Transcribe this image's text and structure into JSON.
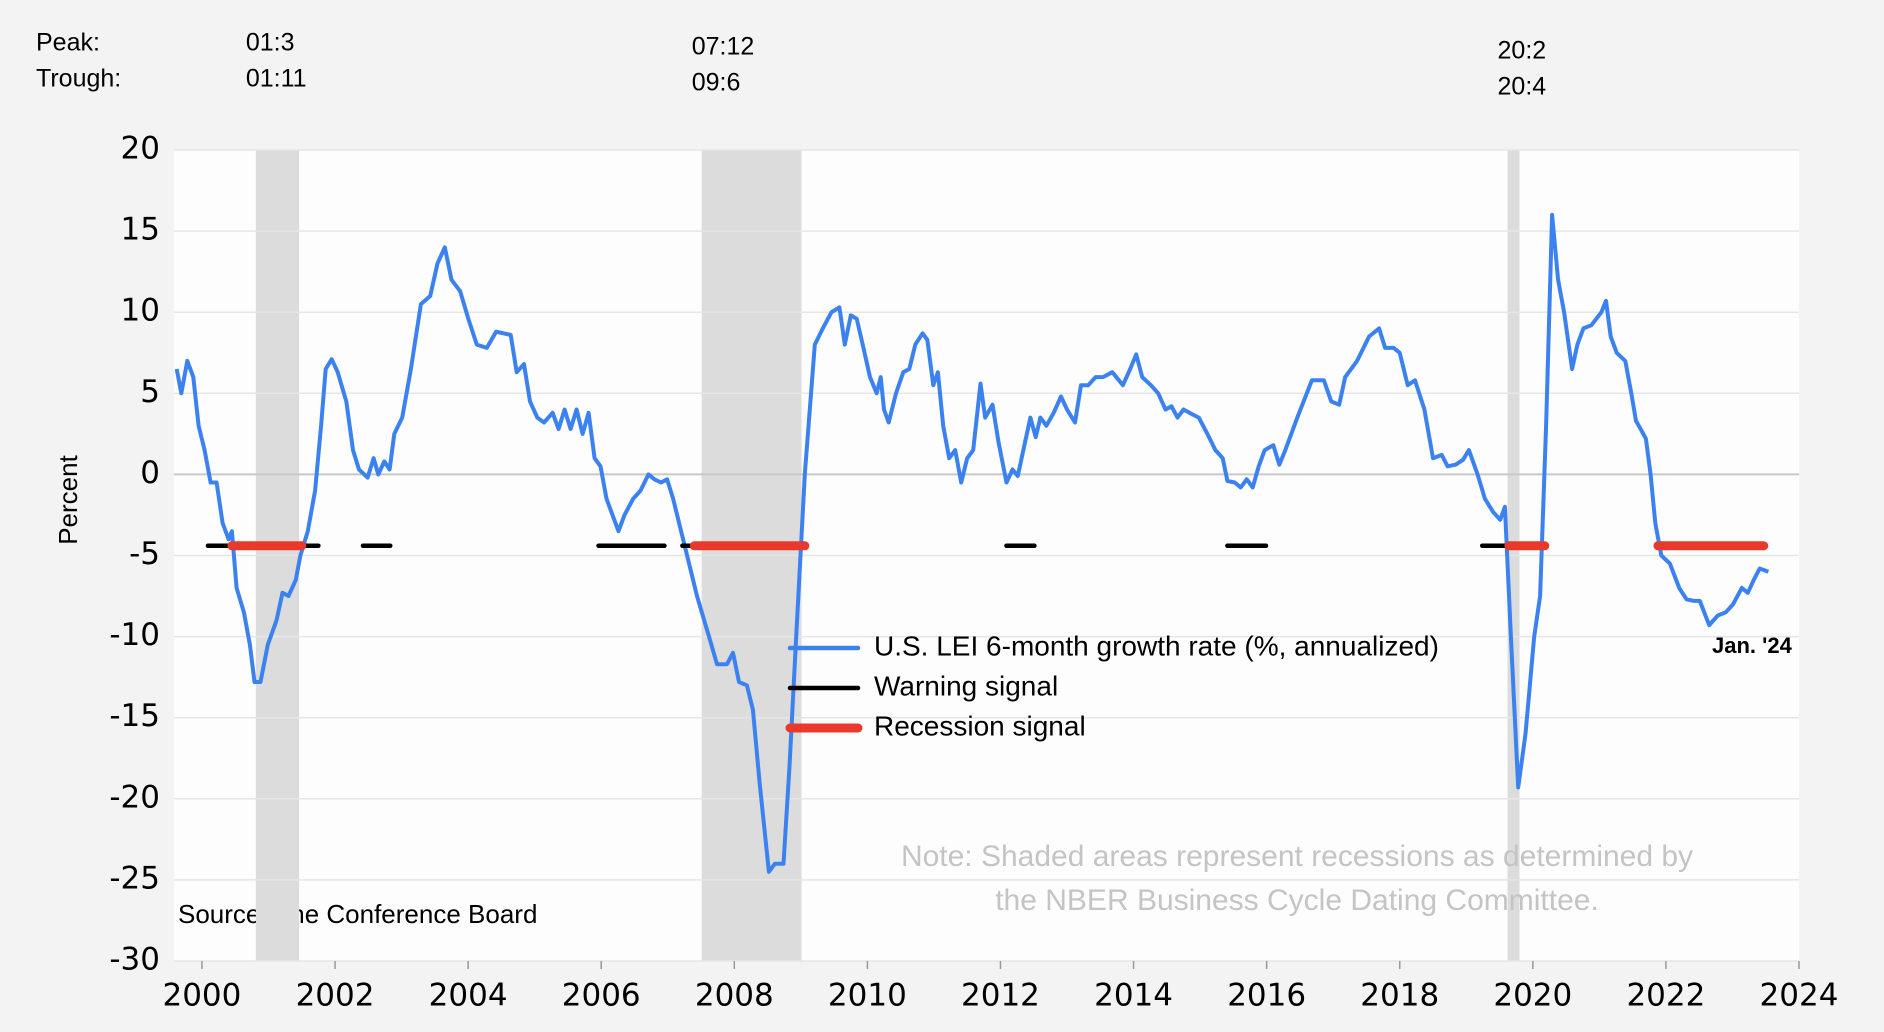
{
  "chart_data": {
    "type": "line",
    "y_label": "Percent",
    "peak_label": "Peak:",
    "trough_label": "Trough:",
    "recessions": [
      {
        "peak": "01:3",
        "trough": "01:11",
        "start": 2000.81,
        "end": 2001.46
      },
      {
        "peak": "07:12",
        "trough": "09:6",
        "start": 2007.51,
        "end": 2009.01
      },
      {
        "peak": "20:2",
        "trough": "20:4",
        "start": 2019.62,
        "end": 2019.8
      }
    ],
    "series": [
      {
        "name": "U.S. LEI 6-month growth rate (%, annualized)",
        "color": "#3b82f0",
        "x": [
          1999.62,
          1999.69,
          1999.78,
          1999.87,
          1999.95,
          2000.04,
          2000.13,
          2000.22,
          2000.31,
          2000.4,
          2000.45,
          2000.52,
          2000.63,
          2000.72,
          2000.79,
          2000.88,
          2000.99,
          2001.12,
          2001.21,
          2001.3,
          2001.41,
          2001.48,
          2001.59,
          2001.7,
          2001.79,
          2001.86,
          2001.95,
          2002.04,
          2002.17,
          2002.27,
          2002.36,
          2002.49,
          2002.58,
          2002.65,
          2002.74,
          2002.82,
          2002.89,
          2003.01,
          2003.14,
          2003.29,
          2003.43,
          2003.54,
          2003.65,
          2003.75,
          2003.88,
          2004.01,
          2004.13,
          2004.28,
          2004.42,
          2004.64,
          2004.73,
          2004.84,
          2004.93,
          2005.04,
          2005.14,
          2005.27,
          2005.36,
          2005.45,
          2005.54,
          2005.63,
          2005.72,
          2005.81,
          2005.9,
          2005.99,
          2006.08,
          2006.17,
          2006.26,
          2006.35,
          2006.48,
          2006.59,
          2006.71,
          2006.8,
          2006.9,
          2006.99,
          2007.08,
          2007.17,
          2007.26,
          2007.44,
          2007.62,
          2007.74,
          2007.89,
          2007.98,
          2008.07,
          2008.19,
          2008.28,
          2008.38,
          2008.52,
          2008.61,
          2008.74,
          2008.83,
          2008.93,
          2009.06,
          2009.21,
          2009.33,
          2009.46,
          2009.58,
          2009.66,
          2009.75,
          2009.84,
          2009.93,
          2010.04,
          2010.14,
          2010.2,
          2010.25,
          2010.32,
          2010.43,
          2010.54,
          2010.63,
          2010.72,
          2010.83,
          2010.9,
          2010.99,
          2011.06,
          2011.14,
          2011.23,
          2011.32,
          2011.41,
          2011.5,
          2011.59,
          2011.7,
          2011.77,
          2011.88,
          2011.97,
          2012.09,
          2012.18,
          2012.26,
          2012.36,
          2012.45,
          2012.53,
          2012.6,
          2012.69,
          2012.8,
          2012.91,
          2013.0,
          2013.12,
          2013.21,
          2013.32,
          2013.43,
          2013.54,
          2013.68,
          2013.84,
          2013.95,
          2014.04,
          2014.13,
          2014.26,
          2014.37,
          2014.48,
          2014.57,
          2014.66,
          2014.75,
          2014.84,
          2014.98,
          2015.11,
          2015.23,
          2015.34,
          2015.41,
          2015.52,
          2015.61,
          2015.7,
          2015.79,
          2015.88,
          2015.97,
          2016.1,
          2016.19,
          2016.28,
          2016.46,
          2016.68,
          2016.86,
          2016.97,
          2017.09,
          2017.18,
          2017.36,
          2017.54,
          2017.69,
          2017.78,
          2017.91,
          2018.0,
          2018.12,
          2018.23,
          2018.37,
          2018.5,
          2018.63,
          2018.72,
          2018.84,
          2018.95,
          2019.04,
          2019.17,
          2019.28,
          2019.4,
          2019.51,
          2019.58,
          2019.67,
          2019.78,
          2019.89,
          2020.02,
          2020.11,
          2020.2,
          2020.29,
          2020.38,
          2020.47,
          2020.59,
          2020.67,
          2020.76,
          2020.88,
          2021.03,
          2021.1,
          2021.17,
          2021.26,
          2021.39,
          2021.48,
          2021.55,
          2021.62,
          2021.7,
          2021.77,
          2021.84,
          2021.93,
          2022.06,
          2022.2,
          2022.31,
          2022.42,
          2022.51,
          2022.65,
          2022.78,
          2022.9,
          2023.01,
          2023.14,
          2023.23,
          2023.32,
          2023.41,
          2023.54
        ],
        "values": [
          6.5,
          5,
          7,
          6,
          3,
          1.5,
          -0.5,
          -0.5,
          -3,
          -4,
          -3.5,
          -7,
          -8.5,
          -10.5,
          -12.8,
          -12.8,
          -10.5,
          -9,
          -7.3,
          -7.5,
          -6.5,
          -5,
          -3.5,
          -1,
          3,
          6.5,
          7.1,
          6.3,
          4.5,
          1.5,
          0.3,
          -0.2,
          1,
          0,
          0.8,
          0.3,
          2.5,
          3.5,
          6.5,
          10.5,
          11,
          13,
          14,
          12,
          11.3,
          9.5,
          8,
          7.8,
          8.8,
          8.6,
          6.3,
          6.8,
          4.5,
          3.5,
          3.2,
          3.8,
          2.8,
          4,
          2.8,
          4,
          2.5,
          3.8,
          1,
          0.5,
          -1.5,
          -2.5,
          -3.5,
          -2.5,
          -1.5,
          -1,
          0,
          -0.3,
          -0.5,
          -0.3,
          -1.5,
          -3,
          -4.5,
          -7.5,
          -10,
          -11.7,
          -11.7,
          -11,
          -12.8,
          -13,
          -14.5,
          -19,
          -24.5,
          -24,
          -24,
          -18,
          -10,
          0,
          8,
          9,
          10,
          10.3,
          8,
          9.8,
          9.6,
          8,
          6,
          5,
          6,
          4,
          3.2,
          5,
          6.3,
          6.5,
          8,
          8.7,
          8.3,
          5.5,
          6.3,
          3,
          1,
          1.5,
          -0.5,
          1,
          1.5,
          5.6,
          3.5,
          4.3,
          2,
          -0.5,
          0.3,
          -0.1,
          1.8,
          3.5,
          2.3,
          3.5,
          3,
          3.8,
          4.8,
          4,
          3.2,
          5.5,
          5.5,
          6,
          6,
          6.3,
          5.5,
          6.5,
          7.4,
          6,
          5.5,
          5,
          4,
          4.2,
          3.5,
          4,
          3.8,
          3.5,
          2.5,
          1.5,
          1,
          -0.4,
          -0.5,
          -0.8,
          -0.3,
          -0.8,
          0.5,
          1.5,
          1.8,
          0.6,
          1.5,
          3.5,
          5.8,
          5.8,
          4.5,
          4.3,
          6,
          7,
          8.5,
          9,
          7.8,
          7.8,
          7.5,
          5.5,
          5.8,
          4,
          1,
          1.2,
          0.5,
          0.6,
          0.9,
          1.5,
          0,
          -1.5,
          -2.3,
          -2.8,
          -2,
          -10,
          -19.3,
          -16,
          -10,
          -7.5,
          3,
          16,
          12,
          10,
          6.5,
          8,
          9,
          9.2,
          10,
          10.7,
          8.5,
          7.5,
          7,
          5,
          3.3,
          2.8,
          2.2,
          0,
          -3,
          -5,
          -5.5,
          -7,
          -7.7,
          -7.8,
          -7.8,
          -9.3,
          -8.7,
          -8.5,
          -8,
          -7,
          -7.3,
          -6.5,
          -5.8,
          -6
        ]
      },
      {
        "name": "Warning signal",
        "color": "#000000",
        "level": -4.4,
        "segments": [
          [
            2000.09,
            2000.49
          ],
          [
            2001.48,
            2001.75
          ],
          [
            2002.42,
            2002.83
          ],
          [
            2005.96,
            2006.95
          ],
          [
            2007.22,
            2007.4
          ],
          [
            2012.09,
            2012.51
          ],
          [
            2015.41,
            2015.99
          ],
          [
            2019.24,
            2019.6
          ]
        ]
      },
      {
        "name": "Recession signal",
        "color": "#e8392c",
        "level": -4.4,
        "segments": [
          [
            2000.45,
            2001.5
          ],
          [
            2007.4,
            2009.06
          ],
          [
            2019.64,
            2020.18
          ],
          [
            2021.88,
            2023.47
          ]
        ]
      }
    ],
    "end_label": "Jan. '24",
    "note": "Note: Shaded areas represent recessions as determined by the NBER Business Cycle Dating Committee.",
    "source": "Source: The Conference Board",
    "xlim": [
      1999.58,
      2024.0
    ],
    "xticks": [
      2000,
      2002,
      2004,
      2006,
      2008,
      2010,
      2012,
      2014,
      2016,
      2018,
      2020,
      2022,
      2024
    ],
    "ylim": [
      -30,
      20
    ],
    "yticks": [
      -30,
      -25,
      -20,
      -15,
      -10,
      -5,
      0,
      5,
      10,
      15,
      20
    ],
    "grid": true,
    "recession_color": "#dcdcdc"
  }
}
